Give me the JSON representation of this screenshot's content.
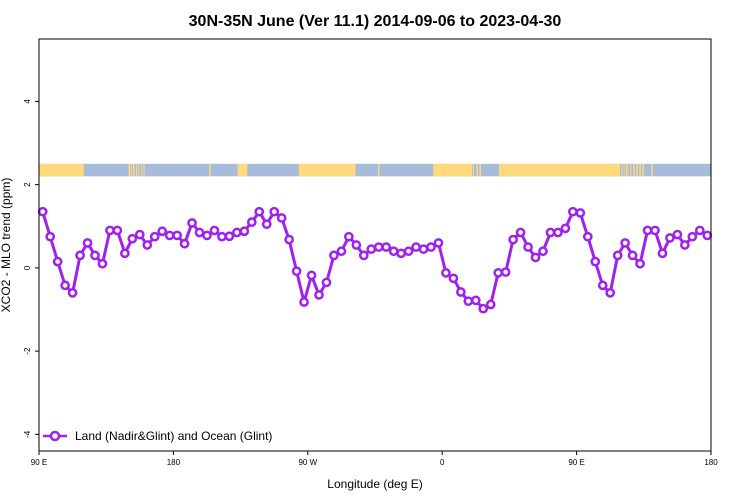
{
  "colors": {
    "series": "#a020f0",
    "land": "#ffd97a",
    "ocean": "#a7bbdb",
    "frame": "#000000"
  },
  "chart_data": {
    "type": "line",
    "title": "30N-35N June (Ver 11.1)   2014-09-06 to 2023-04-30",
    "xlabel": "Longitude (deg E)",
    "ylabel": "XCO2 - MLO trend (ppm)",
    "xlim": [
      90,
      540
    ],
    "ylim": [
      -4.4,
      5.5
    ],
    "x_ticks": [
      {
        "value": 90,
        "label": "90 E"
      },
      {
        "value": 180,
        "label": "180"
      },
      {
        "value": 270,
        "label": "90 W"
      },
      {
        "value": 360,
        "label": "0"
      },
      {
        "value": 450,
        "label": "90 E"
      },
      {
        "value": 540,
        "label": "180"
      }
    ],
    "y_ticks": [
      {
        "value": -4,
        "label": "-4"
      },
      {
        "value": -2,
        "label": "-2"
      },
      {
        "value": 0,
        "label": "0"
      },
      {
        "value": 2,
        "label": "2"
      },
      {
        "value": 4,
        "label": "4"
      }
    ],
    "grid": false,
    "legend_position": "bottom-left",
    "series": [
      {
        "name": "Land (Nadir&Glint) and Ocean (Glint)",
        "x": [
          92.5,
          97.5,
          102.5,
          107.5,
          112.5,
          117.5,
          122.5,
          127.5,
          132.5,
          137.5,
          142.5,
          147.5,
          152.5,
          157.5,
          162.5,
          167.5,
          172.5,
          177.5,
          182.5,
          187.5,
          192.5,
          197.5,
          202.5,
          207.5,
          212.5,
          217.5,
          222.5,
          227.5,
          232.5,
          237.5,
          242.5,
          247.5,
          252.5,
          257.5,
          262.5,
          267.5,
          272.5,
          277.5,
          282.5,
          287.5,
          292.5,
          297.5,
          302.5,
          307.5,
          312.5,
          317.5,
          322.5,
          327.5,
          332.5,
          337.5,
          342.5,
          347.5,
          352.5,
          357.5,
          362.5,
          367.5,
          372.5,
          377.5,
          382.5,
          387.5,
          392.5,
          397.5,
          402.5,
          407.5,
          412.5,
          417.5,
          422.5,
          427.5,
          432.5,
          437.5,
          442.5,
          447.5,
          452.5,
          457.5,
          462.5,
          467.5,
          472.5,
          477.5,
          482.5,
          487.5,
          492.5,
          497.5,
          502.5,
          507.5,
          512.5,
          517.5,
          522.5,
          527.5,
          532.5,
          537.5
        ],
        "y": [
          1.35,
          0.75,
          0.15,
          -0.42,
          -0.6,
          0.3,
          0.6,
          0.3,
          0.1,
          0.9,
          0.9,
          0.35,
          0.7,
          0.8,
          0.55,
          0.75,
          0.88,
          0.78,
          0.78,
          0.58,
          1.08,
          0.85,
          0.78,
          0.9,
          0.75,
          0.76,
          0.85,
          0.88,
          1.1,
          1.35,
          1.05,
          1.35,
          1.2,
          0.68,
          -0.08,
          -0.82,
          -0.18,
          -0.65,
          -0.35,
          0.3,
          0.4,
          0.75,
          0.55,
          0.3,
          0.45,
          0.5,
          0.5,
          0.4,
          0.35,
          0.4,
          0.5,
          0.45,
          0.5,
          0.6,
          -0.12,
          -0.25,
          -0.58,
          -0.8,
          -0.78,
          -0.98,
          -0.88,
          -0.12,
          -0.1,
          0.68,
          0.85,
          0.5,
          0.25,
          0.4,
          0.85,
          0.85,
          0.95,
          1.35,
          1.32,
          0.75,
          0.15,
          -0.42,
          -0.6,
          0.3,
          0.6,
          0.3,
          0.1,
          0.9,
          0.9,
          0.35,
          0.72,
          0.8,
          0.55,
          0.75,
          0.9,
          0.78
        ]
      }
    ],
    "surface_band": {
      "y_range": [
        2.2,
        2.5
      ],
      "land_intervals": [
        [
          90,
          120
        ],
        [
          150,
          151
        ],
        [
          151.5,
          152
        ],
        [
          153,
          154
        ],
        [
          155,
          155.7
        ],
        [
          156.5,
          157
        ],
        [
          158.5,
          159
        ],
        [
          160,
          160.5
        ],
        [
          204,
          205
        ],
        [
          223,
          229.5
        ],
        [
          264,
          302
        ],
        [
          317,
          318
        ],
        [
          354,
          380
        ],
        [
          380.5,
          381
        ],
        [
          383,
          384
        ],
        [
          385,
          386
        ],
        [
          398,
          479
        ],
        [
          480,
          480.6
        ],
        [
          481.5,
          482
        ],
        [
          483,
          483.5
        ],
        [
          484,
          484.5
        ],
        [
          486,
          486.5
        ],
        [
          488,
          489
        ],
        [
          490,
          491
        ],
        [
          492,
          493
        ],
        [
          494,
          495
        ],
        [
          500,
          501
        ]
      ]
    }
  }
}
